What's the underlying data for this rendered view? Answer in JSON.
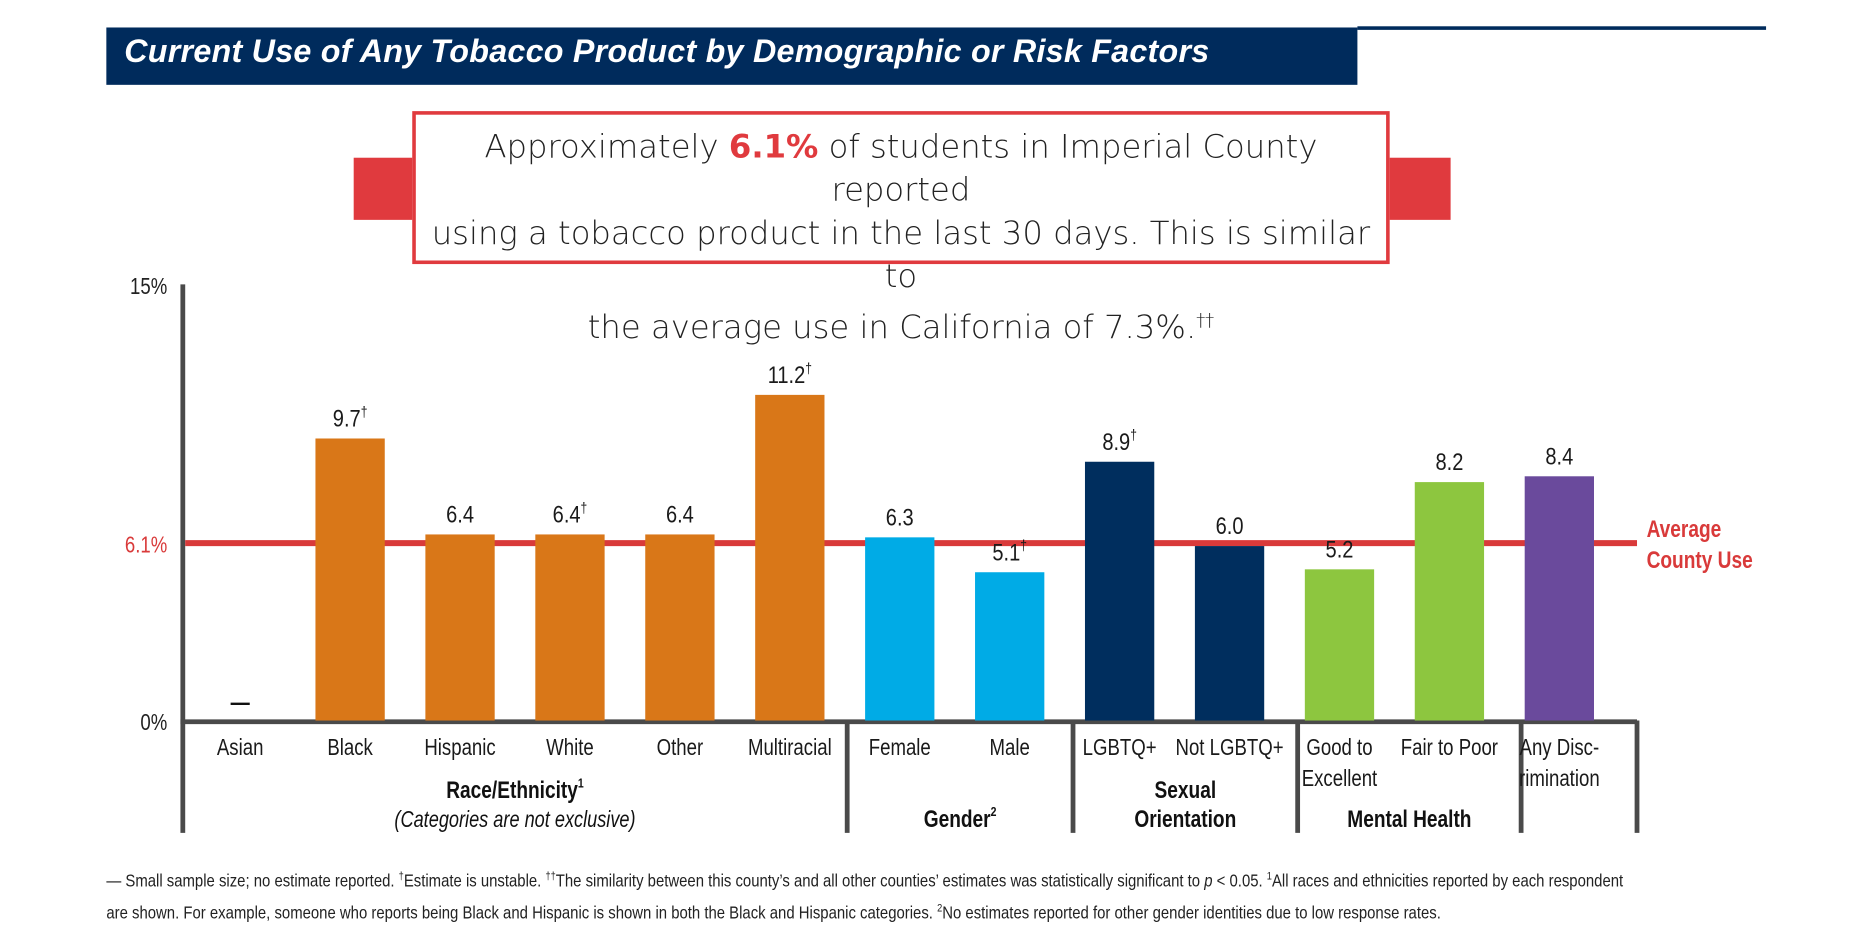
{
  "title": "Current Use of Any Tobacco Product by Demographic or Risk Factors",
  "callout": {
    "prefix": "Approximately ",
    "highlight": "6.1%",
    "line1_rest": " of students in Imperial County reported",
    "line2": "using a tobacco product in the last 30 days. This is similar to",
    "line3": "the average use in California of 7.3%.",
    "line3_sup": "††"
  },
  "colors": {
    "navy": "#002b5c",
    "red": "#e03a3e",
    "avg_line": "#d93a3a",
    "axis": "#4a4a4a",
    "race": "#d97718",
    "gender": "#00abe6",
    "sexual_orientation": "#002e5e",
    "mental_health": "#8dc63f",
    "discrimination": "#6a4a9c"
  },
  "chart_data": {
    "type": "bar",
    "title": "Current Use of Any Tobacco Product by Demographic or Risk Factors",
    "xlabel": "",
    "ylabel": "",
    "ylim": [
      0,
      15
    ],
    "y_ticks": [
      {
        "value": 0,
        "label": "0%"
      },
      {
        "value": 15,
        "label": "15%"
      }
    ],
    "reference_line": {
      "value": 6.1,
      "axis_label": "6.1%",
      "label_line1": "Average",
      "label_line2": "County Use"
    },
    "categories": [
      "Asian",
      "Black",
      "Hispanic",
      "White",
      "Other",
      "Multiracial",
      "Female",
      "Male",
      "LGBTQ+",
      "Not LGBTQ+",
      "Good to Excellent",
      "Fair to Poor",
      "Any Discrimination"
    ],
    "bars": [
      {
        "category": "Asian",
        "label_lines": [
          "Asian"
        ],
        "value": null,
        "value_label": "—",
        "marker": "",
        "group": 0
      },
      {
        "category": "Black",
        "label_lines": [
          "Black"
        ],
        "value": 9.7,
        "value_label": "9.7",
        "marker": "†",
        "group": 0
      },
      {
        "category": "Hispanic",
        "label_lines": [
          "Hispanic"
        ],
        "value": 6.4,
        "value_label": "6.4",
        "marker": "",
        "group": 0
      },
      {
        "category": "White",
        "label_lines": [
          "White"
        ],
        "value": 6.4,
        "value_label": "6.4",
        "marker": "†",
        "group": 0
      },
      {
        "category": "Other",
        "label_lines": [
          "Other"
        ],
        "value": 6.4,
        "value_label": "6.4",
        "marker": "",
        "group": 0
      },
      {
        "category": "Multiracial",
        "label_lines": [
          "Multiracial"
        ],
        "value": 11.2,
        "value_label": "11.2",
        "marker": "†",
        "group": 0
      },
      {
        "category": "Female",
        "label_lines": [
          "Female"
        ],
        "value": 6.3,
        "value_label": "6.3",
        "marker": "",
        "group": 1
      },
      {
        "category": "Male",
        "label_lines": [
          "Male"
        ],
        "value": 5.1,
        "value_label": "5.1",
        "marker": "†",
        "group": 1
      },
      {
        "category": "LGBTQ+",
        "label_lines": [
          "LGBTQ+"
        ],
        "value": 8.9,
        "value_label": "8.9",
        "marker": "†",
        "group": 2
      },
      {
        "category": "Not LGBTQ+",
        "label_lines": [
          "Not LGBTQ+"
        ],
        "value": 6.0,
        "value_label": "6.0",
        "marker": "",
        "group": 2
      },
      {
        "category": "Good to Excellent",
        "label_lines": [
          "Good to",
          "Excellent"
        ],
        "value": 5.2,
        "value_label": "5.2",
        "marker": "",
        "group": 3
      },
      {
        "category": "Fair to Poor",
        "label_lines": [
          "Fair to Poor"
        ],
        "value": 8.2,
        "value_label": "8.2",
        "marker": "",
        "group": 3
      },
      {
        "category": "Any Discrimination",
        "label_lines": [
          "Any Disc-",
          "rimination"
        ],
        "value": 8.4,
        "value_label": "8.4",
        "marker": "",
        "group": 4
      }
    ],
    "groups": [
      {
        "name": "Race/Ethnicity",
        "sup": "1",
        "subtitle": "(Categories are not exclusive)",
        "color_key": "race",
        "label_lines": [
          "Race/Ethnicity"
        ]
      },
      {
        "name": "Gender",
        "sup": "2",
        "subtitle": "",
        "color_key": "gender",
        "label_lines": [
          "Gender"
        ]
      },
      {
        "name": "Sexual Orientation",
        "sup": "",
        "subtitle": "",
        "color_key": "sexual_orientation",
        "label_lines": [
          "Sexual",
          "Orientation"
        ]
      },
      {
        "name": "Mental Health",
        "sup": "",
        "subtitle": "",
        "color_key": "mental_health",
        "label_lines": [
          "Mental Health"
        ]
      },
      {
        "name": "Any Discrimination",
        "sup": "",
        "subtitle": "",
        "color_key": "discrimination",
        "label_lines": []
      }
    ],
    "grid": false,
    "legend": "none"
  },
  "footnote": {
    "line1_a": "— Small sample size; no estimate reported. ",
    "line1_b": "†",
    "line1_c": "Estimate is unstable. ",
    "line1_d": "††",
    "line1_e": "The similarity between this county’s and all other counties’ estimates was statistically significant to ",
    "line1_p": "p",
    "line1_f": " < 0.05. ",
    "line1_g": "1",
    "line1_h": "All races and ethnicities reported by each respondent",
    "line2_a": "are shown. For example, someone who reports being Black and Hispanic is shown in both the Black and Hispanic categories. ",
    "line2_b": "2",
    "line2_c": "No estimates reported for other gender identities due to low response rates."
  }
}
